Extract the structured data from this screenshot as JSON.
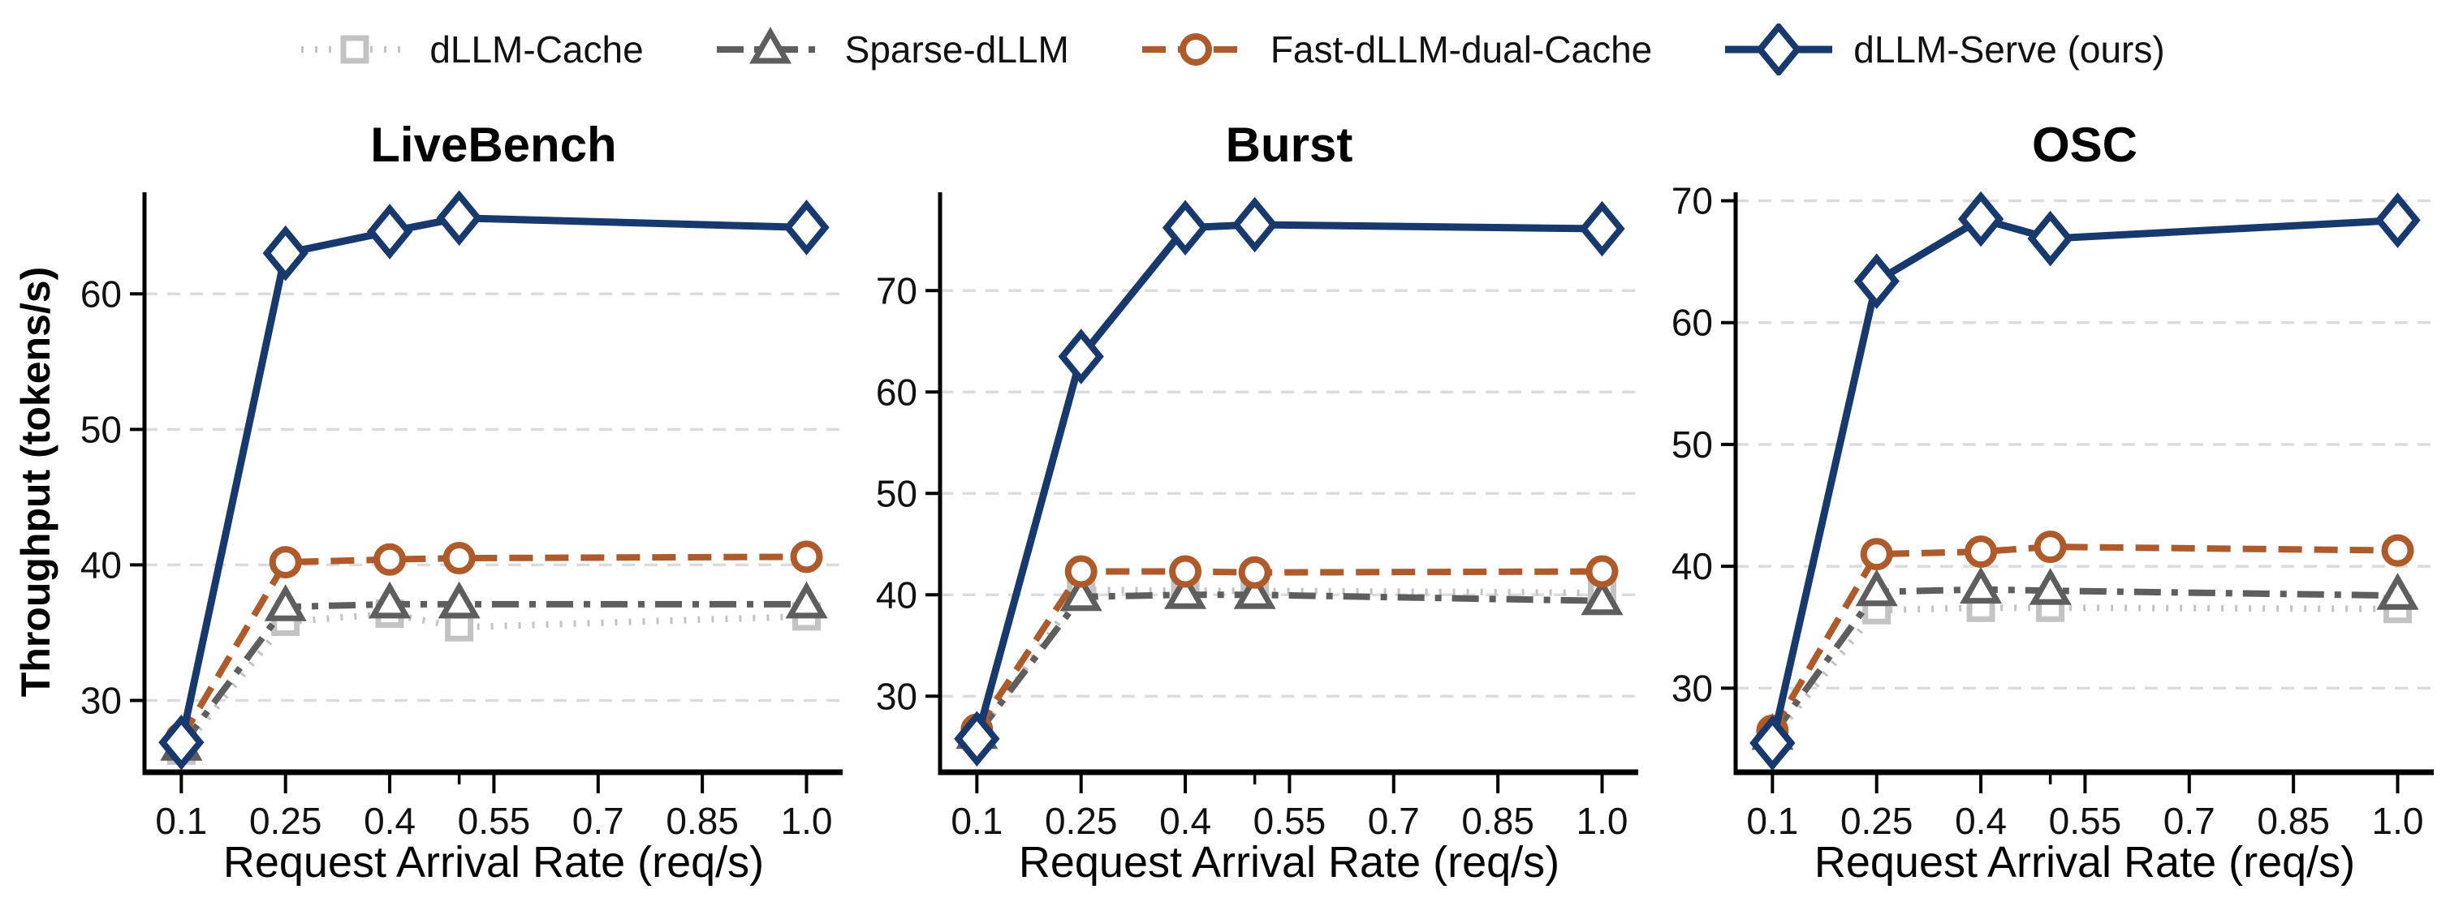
{
  "figure": {
    "ylabel": "Throughput (tokens/s)",
    "xlabel": "Request Arrival Rate (req/s)",
    "background": "#ffffff",
    "grid_color": "#dcdcdc",
    "axis_color": "#000000",
    "text_color": "#111111"
  },
  "legend": {
    "position": "top-center-outside",
    "items": [
      {
        "label": "dLLM-Cache"
      },
      {
        "label": "Sparse-dLLM"
      },
      {
        "label": "Fast-dLLM-dual-Cache"
      },
      {
        "label": "dLLM-Serve (ours)"
      }
    ]
  },
  "series_styles": [
    {
      "name": "dLLM-Cache",
      "color": "#c3c3c3",
      "marker": "square",
      "linestyle": "dotted",
      "line_width": 8
    },
    {
      "name": "Sparse-dLLM",
      "color": "#5e5e5e",
      "marker": "triangle",
      "linestyle": "dashdot",
      "line_width": 8
    },
    {
      "name": "Fast-dLLM-dual-Cache",
      "color": "#ae5a2b",
      "marker": "circle",
      "linestyle": "dashed",
      "line_width": 8
    },
    {
      "name": "dLLM-Serve (ours)",
      "color": "#17396d",
      "marker": "diamond",
      "linestyle": "solid",
      "line_width": 9
    }
  ],
  "chart_data": [
    {
      "type": "line",
      "title": "LiveBench",
      "xlabel": "Request Arrival Rate (req/s)",
      "ylabel": "Throughput (tokens/s)",
      "x": [
        0.1,
        0.25,
        0.4,
        0.5,
        1.0
      ],
      "xticks": [
        0.1,
        0.25,
        0.4,
        0.55,
        0.7,
        0.85,
        1.0
      ],
      "xtick_labels": [
        "0.1",
        "0.25",
        "0.4",
        "0.55",
        "0.7",
        "0.85",
        "1.0"
      ],
      "x_minor_ticks": [
        0.5
      ],
      "yticks": [
        30,
        40,
        50,
        60
      ],
      "ytick_labels": [
        "30",
        "40",
        "50",
        "60"
      ],
      "xlim": [
        0.047,
        1.052
      ],
      "ylim": [
        24.7,
        67.5
      ],
      "grid": "horizontal-dashed",
      "series": [
        {
          "name": "dLLM-Cache",
          "values": [
            26.3,
            35.8,
            36.4,
            35.4,
            36.2
          ]
        },
        {
          "name": "Sparse-dLLM",
          "values": [
            26.6,
            36.9,
            37.1,
            37.1,
            37.1
          ]
        },
        {
          "name": "Fast-dLLM-dual-Cache",
          "values": [
            27.2,
            40.2,
            40.4,
            40.5,
            40.6
          ]
        },
        {
          "name": "dLLM-Serve (ours)",
          "values": [
            26.9,
            63.0,
            64.6,
            65.6,
            64.9
          ]
        }
      ]
    },
    {
      "type": "line",
      "title": "Burst",
      "xlabel": "Request Arrival Rate (req/s)",
      "ylabel": "Throughput (tokens/s)",
      "x": [
        0.1,
        0.25,
        0.4,
        0.5,
        1.0
      ],
      "xticks": [
        0.1,
        0.25,
        0.4,
        0.55,
        0.7,
        0.85,
        1.0
      ],
      "xtick_labels": [
        "0.1",
        "0.25",
        "0.4",
        "0.55",
        "0.7",
        "0.85",
        "1.0"
      ],
      "x_minor_ticks": [
        0.5
      ],
      "yticks": [
        30,
        40,
        50,
        60,
        70
      ],
      "ytick_labels": [
        "30",
        "40",
        "50",
        "60",
        "70"
      ],
      "xlim": [
        0.047,
        1.052
      ],
      "ylim": [
        22.5,
        79.7
      ],
      "grid": "horizontal-dashed",
      "series": [
        {
          "name": "dLLM-Cache",
          "values": [
            26.0,
            40.5,
            40.4,
            40.4,
            40.2
          ]
        },
        {
          "name": "Sparse-dLLM",
          "values": [
            26.2,
            39.8,
            40.0,
            40.0,
            39.4
          ]
        },
        {
          "name": "Fast-dLLM-dual-Cache",
          "values": [
            26.7,
            42.3,
            42.3,
            42.2,
            42.3
          ]
        },
        {
          "name": "dLLM-Serve (ours)",
          "values": [
            25.8,
            63.5,
            76.2,
            76.5,
            76.1
          ]
        }
      ]
    },
    {
      "type": "line",
      "title": "OSC",
      "xlabel": "Request Arrival Rate (req/s)",
      "ylabel": "Throughput (tokens/s)",
      "x": [
        0.1,
        0.25,
        0.4,
        0.5,
        1.0
      ],
      "xticks": [
        0.1,
        0.25,
        0.4,
        0.55,
        0.7,
        0.85,
        1.0
      ],
      "xtick_labels": [
        "0.1",
        "0.25",
        "0.4",
        "0.55",
        "0.7",
        "0.85",
        "1.0"
      ],
      "x_minor_ticks": [
        0.5
      ],
      "yticks": [
        30,
        40,
        50,
        60,
        70
      ],
      "ytick_labels": [
        "30",
        "40",
        "50",
        "60",
        "70"
      ],
      "xlim": [
        0.047,
        1.052
      ],
      "ylim": [
        23.1,
        70.7
      ],
      "grid": "horizontal-dashed",
      "series": [
        {
          "name": "dLLM-Cache",
          "values": [
            25.8,
            36.4,
            36.6,
            36.6,
            36.5
          ]
        },
        {
          "name": "Sparse-dLLM",
          "values": [
            26.1,
            37.9,
            38.1,
            38.0,
            37.6
          ]
        },
        {
          "name": "Fast-dLLM-dual-Cache",
          "values": [
            26.5,
            41.0,
            41.2,
            41.6,
            41.3
          ]
        },
        {
          "name": "dLLM-Serve (ours)",
          "values": [
            25.5,
            63.4,
            68.5,
            66.9,
            68.4
          ]
        }
      ]
    }
  ]
}
